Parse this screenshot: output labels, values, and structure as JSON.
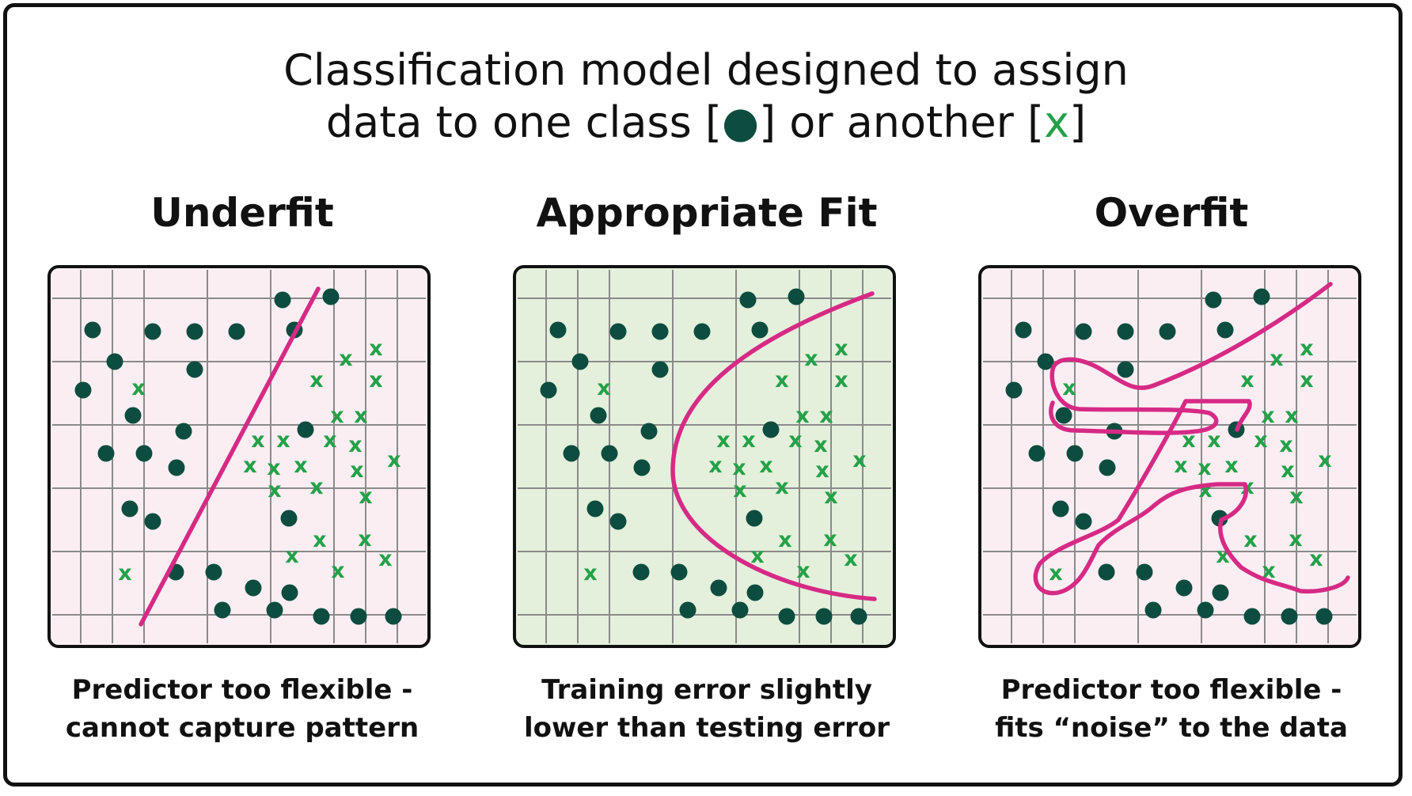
{
  "title": {
    "line1": "Classification model designed to assign",
    "line2_before": "data to one class [",
    "line2_dot": "●",
    "line2_middle": "] or another [",
    "line2_x": "x",
    "line2_after": "]"
  },
  "colors": {
    "dot": "#0d4d3f",
    "cross": "#24a148",
    "curve": "#d62a85",
    "underfit_bg": "#fbeef3",
    "fit_bg": "#e4f0dc",
    "overfit_bg": "#fbeef3",
    "grid": "#8a8a8a",
    "border": "#111111"
  },
  "panels": [
    {
      "id": "underfit",
      "title": "Underfit",
      "caption_line1": "Predictor too flexible -",
      "caption_line2": "cannot capture pattern",
      "background": "underfit_bg"
    },
    {
      "id": "appropriate",
      "title": "Appropriate Fit",
      "caption_line1": "Training error slightly",
      "caption_line2": "lower than testing error",
      "background": "fit_bg"
    },
    {
      "id": "overfit",
      "title": "Overfit",
      "caption_line1": "Predictor too flexible -",
      "caption_line2": "fits “noise” to the data",
      "background": "overfit_bg"
    }
  ]
}
